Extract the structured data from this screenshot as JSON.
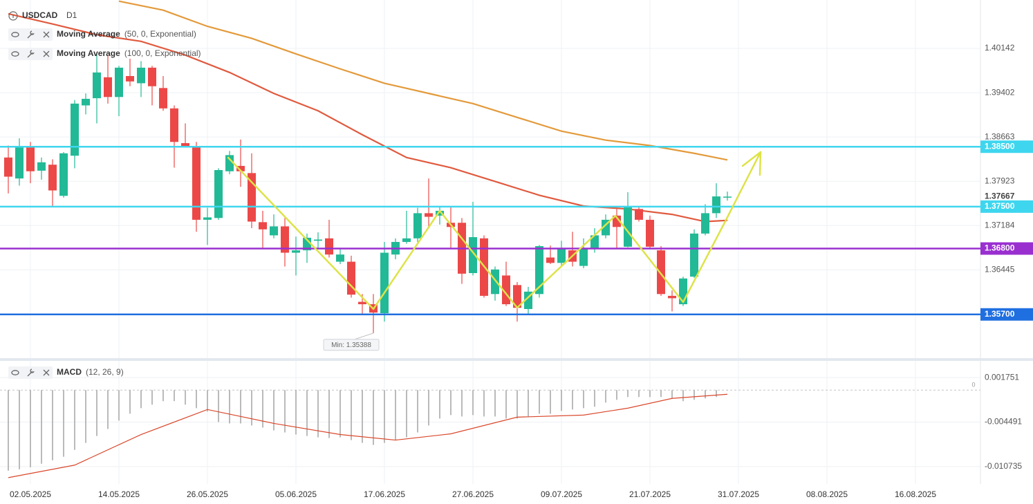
{
  "chart_data": [
    {
      "type": "candlestick",
      "title": "USDCAD",
      "timeframe": "D1",
      "up_color": "#22b996",
      "down_color": "#ec4848",
      "open": [
        1.3832,
        1.3797,
        1.385,
        1.381,
        1.382,
        1.3768,
        1.3835,
        1.3919,
        1.3931,
        1.3966,
        1.3933,
        1.3968,
        1.3956,
        1.3982,
        1.3948,
        1.3914,
        1.3856,
        1.385,
        1.3728,
        1.3731,
        1.3809,
        1.3818,
        1.3806,
        1.3724,
        1.3702,
        1.3717,
        1.3673,
        1.3677,
        1.3693,
        1.3697,
        1.3658,
        1.3658,
        1.3591,
        1.3587,
        1.3572,
        1.367,
        1.3691,
        1.3697,
        1.3739,
        1.3735,
        1.3723,
        1.3723,
        1.3639,
        1.3697,
        1.3604,
        1.3635,
        1.3619,
        1.3579,
        1.3604,
        1.3665,
        1.3656,
        1.3677,
        1.3651,
        1.3679,
        1.3702,
        1.3735,
        1.3683,
        1.3746,
        1.3728,
        1.3677,
        1.3601,
        1.3587,
        1.3633,
        1.3705,
        1.3739,
        1.3765
      ],
      "high": [
        1.3852,
        1.3864,
        1.3858,
        1.3832,
        1.3829,
        1.3841,
        1.3928,
        1.3939,
        1.4005,
        1.4003,
        1.3985,
        1.3997,
        1.3993,
        1.3985,
        1.3968,
        1.3919,
        1.3889,
        1.3858,
        1.3748,
        1.3814,
        1.3843,
        1.3862,
        1.3839,
        1.3743,
        1.3737,
        1.3731,
        1.37,
        1.3705,
        1.3707,
        1.3728,
        1.3679,
        1.3668,
        1.3604,
        1.3604,
        1.3691,
        1.3697,
        1.3743,
        1.3748,
        1.3797,
        1.3751,
        1.3751,
        1.3731,
        1.3758,
        1.3702,
        1.365,
        1.3658,
        1.3624,
        1.3616,
        1.3686,
        1.3685,
        1.3693,
        1.3708,
        1.3697,
        1.3714,
        1.3737,
        1.3746,
        1.3774,
        1.3751,
        1.3735,
        1.3684,
        1.361,
        1.3633,
        1.3712,
        1.3754,
        1.3789,
        1.3775
      ],
      "low": [
        1.3772,
        1.3785,
        1.3789,
        1.3795,
        1.3751,
        1.3765,
        1.3814,
        1.3904,
        1.3889,
        1.3922,
        1.3901,
        1.3951,
        1.3933,
        1.3919,
        1.391,
        1.3815,
        1.3849,
        1.3708,
        1.3686,
        1.3728,
        1.3804,
        1.3783,
        1.3714,
        1.3679,
        1.3697,
        1.365,
        1.3635,
        1.3656,
        1.3679,
        1.3665,
        1.3654,
        1.3598,
        1.3569,
        1.35388,
        1.3558,
        1.3662,
        1.3688,
        1.3691,
        1.3714,
        1.372,
        1.3679,
        1.3621,
        1.3635,
        1.3598,
        1.3593,
        1.3584,
        1.3558,
        1.3569,
        1.3598,
        1.3654,
        1.365,
        1.365,
        1.3647,
        1.3673,
        1.3697,
        1.3679,
        1.3682,
        1.3725,
        1.3679,
        1.3601,
        1.3575,
        1.3584,
        1.3631,
        1.3702,
        1.3731,
        1.376
      ],
      "close": [
        1.38,
        1.385,
        1.3809,
        1.3824,
        1.3777,
        1.3839,
        1.3922,
        1.393,
        1.3974,
        1.3933,
        1.3982,
        1.3959,
        1.3982,
        1.3951,
        1.3914,
        1.3858,
        1.3851,
        1.3728,
        1.3732,
        1.3811,
        1.3836,
        1.3809,
        1.3725,
        1.3712,
        1.3717,
        1.3673,
        1.3677,
        1.3698,
        1.3695,
        1.367,
        1.367,
        1.3603,
        1.3587,
        1.3573,
        1.3673,
        1.3691,
        1.3697,
        1.3739,
        1.3733,
        1.3743,
        1.3716,
        1.3638,
        1.3699,
        1.3601,
        1.3645,
        1.3587,
        1.3581,
        1.3608,
        1.3684,
        1.3656,
        1.3679,
        1.3658,
        1.3679,
        1.3702,
        1.3728,
        1.3716,
        1.3751,
        1.3728,
        1.3683,
        1.3604,
        1.3597,
        1.363,
        1.3705,
        1.3739,
        1.3767,
        1.37667
      ],
      "min_label": "Min: 1.35388",
      "last_price": 1.37667,
      "series": [
        {
          "name": "Moving Average",
          "params": "(50, 0, Exponential)",
          "color": "#e05a3e",
          "x": [
            0,
            4,
            8,
            12,
            16,
            20,
            24,
            28,
            32,
            36,
            40,
            44,
            48,
            52,
            56,
            60,
            63,
            65
          ],
          "values": [
            1.4072,
            1.4055,
            1.4037,
            1.4026,
            1.4003,
            1.3974,
            1.3939,
            1.391,
            1.387,
            1.3832,
            1.3815,
            1.3792,
            1.3769,
            1.3751,
            1.3746,
            1.3737,
            1.3725,
            1.3727
          ]
        },
        {
          "name": "Moving Average",
          "params": "(100, 0, Exponential)",
          "color": "#e39a3b",
          "x": [
            10,
            14,
            18,
            22,
            26,
            30,
            34,
            38,
            42,
            46,
            50,
            54,
            58,
            62,
            65
          ],
          "values": [
            1.4093,
            1.4078,
            1.4051,
            1.4031,
            1.4005,
            1.398,
            1.3956,
            1.3939,
            1.3922,
            1.3899,
            1.3876,
            1.3861,
            1.3852,
            1.3839,
            1.3828
          ]
        }
      ],
      "levels": [
        {
          "value": 1.385,
          "label": "1.38500",
          "color": "#3ed6ee"
        },
        {
          "value": 1.375,
          "label": "1.37500",
          "color": "#3ed6ee"
        },
        {
          "value": 1.368,
          "label": "1.36800",
          "color": "#9a2fd0"
        },
        {
          "value": 1.357,
          "label": "1.35700",
          "color": "#1f6fe0"
        }
      ],
      "xlim": [
        -0.75,
        87.875
      ],
      "xticks": [
        {
          "value": 2,
          "label": "02.05.2025"
        },
        {
          "value": 10,
          "label": "14.05.2025"
        },
        {
          "value": 18,
          "label": "26.05.2025"
        },
        {
          "value": 26,
          "label": "05.06.2025"
        },
        {
          "value": 34,
          "label": "17.06.2025"
        },
        {
          "value": 42,
          "label": "27.06.2025"
        },
        {
          "value": 50,
          "label": "09.07.2025"
        },
        {
          "value": 58,
          "label": "21.07.2025"
        },
        {
          "value": 66,
          "label": "31.07.2025"
        },
        {
          "value": 74,
          "label": "08.08.2025"
        },
        {
          "value": 82,
          "label": "16.08.2025"
        }
      ],
      "ylim": [
        1.3497,
        1.4095
      ],
      "yticks": [
        1.40142,
        1.39402,
        1.38663,
        1.37923,
        1.37184,
        1.36445
      ],
      "grid": true
    },
    {
      "type": "macd",
      "title": "MACD",
      "params": "(12, 26, 9)",
      "color": "#a9a9a9",
      "values": [
        -0.01131,
        -0.01112,
        -0.01083,
        -0.01034,
        -0.00985,
        -0.00936,
        -0.00839,
        -0.00741,
        -0.00644,
        -0.00546,
        -0.00429,
        -0.00332,
        -0.00254,
        -0.00205,
        -0.00156,
        -0.00156,
        -0.00205,
        -0.00254,
        -0.00302,
        -0.00449,
        -0.00468,
        -0.00468,
        -0.00497,
        -0.00527,
        -0.00566,
        -0.00595,
        -0.00624,
        -0.00644,
        -0.00663,
        -0.00673,
        -0.00663,
        -0.00702,
        -0.00741,
        -0.0077,
        -0.00741,
        -0.00702,
        -0.00663,
        -0.00595,
        -0.00497,
        -0.004,
        -0.00351,
        -0.00371,
        -0.00351,
        -0.00371,
        -0.00371,
        -0.004,
        -0.004,
        -0.00371,
        -0.00332,
        -0.00332,
        -0.00293,
        -0.00273,
        -0.00254,
        -0.00234,
        -0.00176,
        -0.00137,
        -0.00098,
        -0.00098,
        -0.00098,
        -0.00098,
        -0.00117,
        -0.00156,
        -0.00137,
        -0.00117,
        -0.00098,
        -5e-05
      ],
      "signal": {
        "color": "#d9472b",
        "x": [
          0,
          6,
          12,
          18,
          24,
          30,
          35,
          40,
          46,
          52,
          56,
          60,
          65
        ],
        "values": [
          -0.01229,
          -0.01053,
          -0.00624,
          -0.00273,
          -0.00468,
          -0.00624,
          -0.00702,
          -0.00614,
          -0.0038,
          -0.00351,
          -0.00254,
          -0.00117,
          -0.00059
        ]
      },
      "xlim": [
        -0.75,
        87.875
      ],
      "ylim": [
        -0.013173,
        0.004092
      ],
      "yticks": [
        0.001751,
        -0.004491,
        -0.010735
      ],
      "zero": 0
    }
  ]
}
